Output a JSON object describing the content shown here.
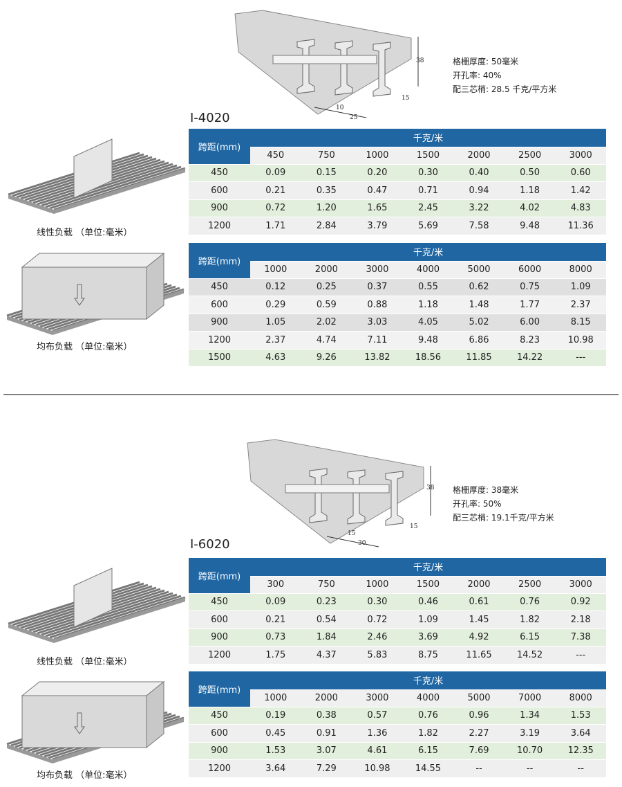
{
  "sections": [
    {
      "title": "I-4020",
      "specs": [
        "格栅厚度: 50毫米",
        "开孔率: 40%",
        "配三芯梢: 28.5 千克/平方米"
      ],
      "dims": [
        "38",
        "10",
        "25",
        "15"
      ],
      "tables": [
        {
          "caption": "线性负载 （单位:毫米）",
          "span_header": "跨距(mm)",
          "unit_header": "千克/米",
          "columns": [
            "450",
            "750",
            "1000",
            "1500",
            "2000",
            "2500",
            "3000"
          ],
          "rows": [
            [
              "450",
              "0.09",
              "0.15",
              "0.20",
              "0.30",
              "0.40",
              "0.50",
              "0.60"
            ],
            [
              "600",
              "0.21",
              "0.35",
              "0.47",
              "0.71",
              "0.94",
              "1.18",
              "1.42"
            ],
            [
              "900",
              "0.72",
              "1.20",
              "1.65",
              "2.45",
              "3.22",
              "4.02",
              "4.83"
            ],
            [
              "1200",
              "1.71",
              "2.84",
              "3.79",
              "5.69",
              "7.58",
              "9.48",
              "11.36"
            ]
          ]
        },
        {
          "caption": "均布负载 （单位:毫米）",
          "span_header": "跨距(mm)",
          "unit_header": "千克/米",
          "columns": [
            "1000",
            "2000",
            "3000",
            "4000",
            "5000",
            "6000",
            "8000"
          ],
          "rows": [
            [
              "450",
              "0.12",
              "0.25",
              "0.37",
              "0.55",
              "0.62",
              "0.75",
              "1.09"
            ],
            [
              "600",
              "0.29",
              "0.59",
              "0.88",
              "1.18",
              "1.48",
              "1.77",
              "2.37"
            ],
            [
              "900",
              "1.05",
              "2.02",
              "3.03",
              "4.05",
              "5.02",
              "6.00",
              "8.15"
            ],
            [
              "1200",
              "2.37",
              "4.74",
              "7.11",
              "9.48",
              "6.86",
              "8.23",
              "10.98"
            ],
            [
              "1500",
              "4.63",
              "9.26",
              "13.82",
              "18.56",
              "11.85",
              "14.22",
              "---"
            ]
          ]
        }
      ]
    },
    {
      "title": "I-6020",
      "specs": [
        "格栅厚度: 38毫米",
        "开孔率: 50%",
        "配三芯梢: 19.1千克/平方米"
      ],
      "dims": [
        "38",
        "15",
        "30",
        "15"
      ],
      "tables": [
        {
          "caption": "线性负载 （单位:毫米）",
          "span_header": "跨距(mm)",
          "unit_header": "千克/米",
          "columns": [
            "300",
            "750",
            "1000",
            "1500",
            "2000",
            "2500",
            "3000"
          ],
          "rows": [
            [
              "450",
              "0.09",
              "0.23",
              "0.30",
              "0.46",
              "0.61",
              "0.76",
              "0.92"
            ],
            [
              "600",
              "0.21",
              "0.54",
              "0.72",
              "1.09",
              "1.45",
              "1.82",
              "2.18"
            ],
            [
              "900",
              "0.73",
              "1.84",
              "2.46",
              "3.69",
              "4.92",
              "6.15",
              "7.38"
            ],
            [
              "1200",
              "1.75",
              "4.37",
              "5.83",
              "8.75",
              "11.65",
              "14.52",
              "---"
            ]
          ]
        },
        {
          "caption": "均布负载 （单位:毫米）",
          "span_header": "跨距(mm)",
          "unit_header": "千克/米",
          "columns": [
            "1000",
            "2000",
            "3000",
            "4000",
            "5000",
            "7000",
            "8000"
          ],
          "rows": [
            [
              "450",
              "0.19",
              "0.38",
              "0.57",
              "0.76",
              "0.96",
              "1.34",
              "1.53"
            ],
            [
              "600",
              "0.45",
              "0.91",
              "1.36",
              "1.82",
              "2.27",
              "3.19",
              "3.64"
            ],
            [
              "900",
              "1.53",
              "3.07",
              "4.61",
              "6.15",
              "7.69",
              "10.70",
              "12.35"
            ],
            [
              "1200",
              "3.64",
              "7.29",
              "10.98",
              "14.55",
              "--",
              "--",
              "--"
            ]
          ]
        }
      ]
    }
  ]
}
